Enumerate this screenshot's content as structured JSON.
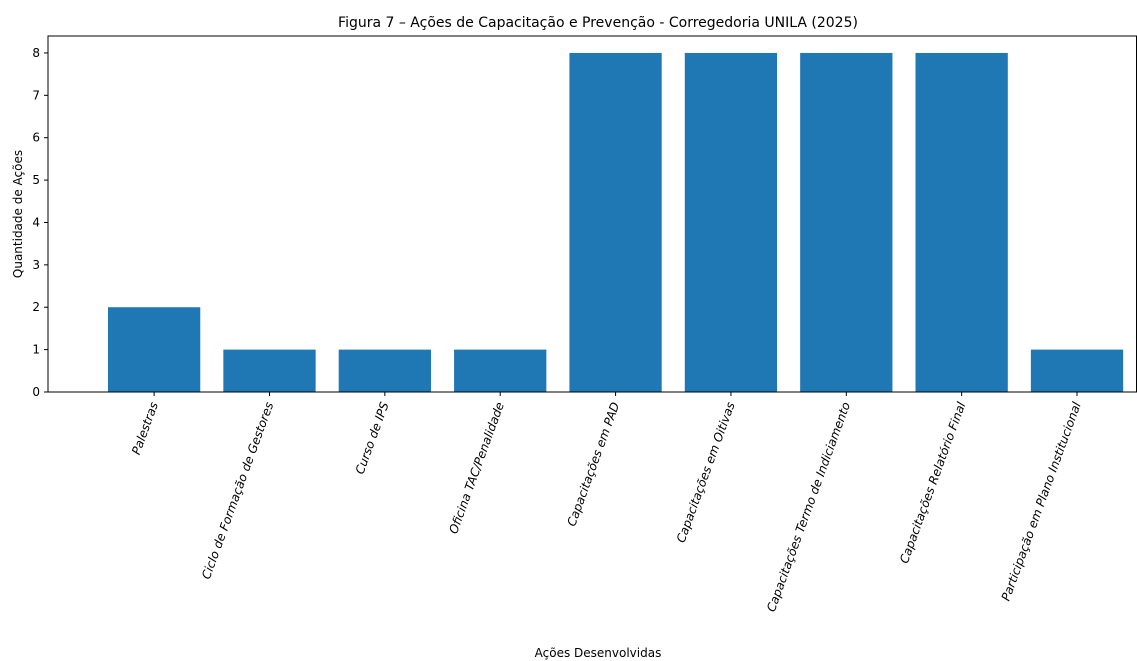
{
  "chart_data": {
    "type": "bar",
    "title": "Figura 7 – Ações de Capacitação e Prevenção - Corregedoria UNILA (2025)",
    "xlabel": "Ações Desenvolvidas",
    "ylabel": "Quantidade de Ações",
    "categories": [
      "Palestras",
      "Ciclo de Formação de Gestores",
      "Curso de IPS",
      "Oficina TAC/Penalidade",
      "Capacitações em PAD",
      "Capacitações em Oitivas",
      "Capacitações Termo de Indiciamento",
      "Capacitações Relatório Final",
      "Participação em Plano Institucional"
    ],
    "values": [
      2,
      1,
      1,
      1,
      8,
      8,
      8,
      8,
      1
    ],
    "ylim": [
      0,
      8.4
    ],
    "yticks": [
      0,
      1,
      2,
      3,
      4,
      5,
      6,
      7,
      8
    ],
    "grid": false,
    "bar_color": "#1f77b4"
  }
}
